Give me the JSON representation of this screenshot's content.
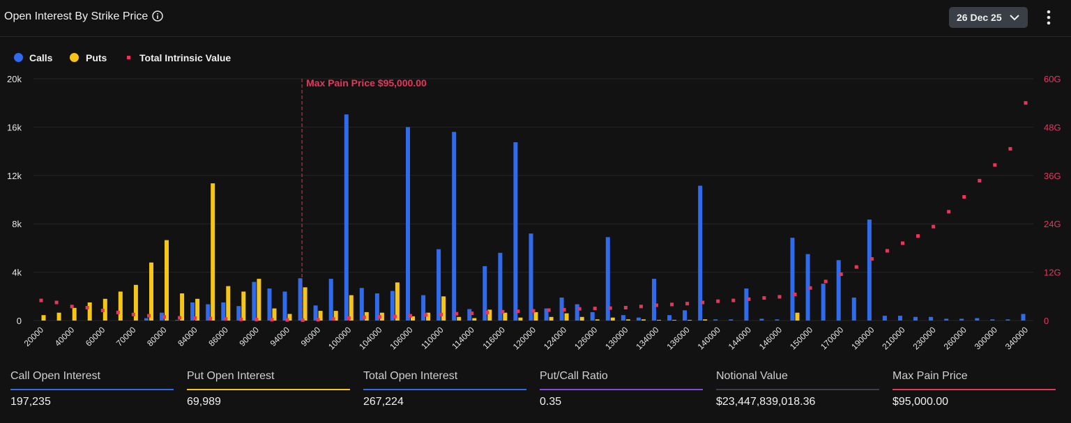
{
  "header": {
    "title": "Open Interest By Strike Price",
    "date_label": "26 Dec 25"
  },
  "legend": {
    "calls": "Calls",
    "puts": "Puts",
    "tiv": "Total Intrinsic Value"
  },
  "colors": {
    "calls": "#2f6bea",
    "puts": "#f5c518",
    "tiv": "#e8365a",
    "stat_line_4": "#7e4ae0",
    "stat_line_5": "#3c3f47"
  },
  "chart_data": {
    "type": "bar",
    "max_pain_label": "Max Pain Price $95,000.00",
    "max_pain_index": 17,
    "left_axis": {
      "ticks": [
        "0",
        "4k",
        "8k",
        "12k",
        "16k",
        "20k"
      ],
      "ylim": [
        0,
        20000
      ]
    },
    "right_axis": {
      "ticks": [
        "0",
        "12G",
        "24G",
        "36G",
        "48G",
        "60G"
      ],
      "ylim": [
        0,
        60000000000
      ]
    },
    "x_tick_labels": [
      {
        "index": 0,
        "label": "20000"
      },
      {
        "index": 2,
        "label": "40000"
      },
      {
        "index": 4,
        "label": "60000"
      },
      {
        "index": 6,
        "label": "70000"
      },
      {
        "index": 8,
        "label": "80000"
      },
      {
        "index": 10,
        "label": "84000"
      },
      {
        "index": 12,
        "label": "86000"
      },
      {
        "index": 14,
        "label": "90000"
      },
      {
        "index": 16,
        "label": "94000"
      },
      {
        "index": 18,
        "label": "96000"
      },
      {
        "index": 20,
        "label": "100000"
      },
      {
        "index": 22,
        "label": "104000"
      },
      {
        "index": 24,
        "label": "106000"
      },
      {
        "index": 26,
        "label": "110000"
      },
      {
        "index": 28,
        "label": "114000"
      },
      {
        "index": 30,
        "label": "116000"
      },
      {
        "index": 32,
        "label": "120000"
      },
      {
        "index": 34,
        "label": "124000"
      },
      {
        "index": 36,
        "label": "126000"
      },
      {
        "index": 38,
        "label": "130000"
      },
      {
        "index": 40,
        "label": "134000"
      },
      {
        "index": 42,
        "label": "136000"
      },
      {
        "index": 44,
        "label": "140000"
      },
      {
        "index": 46,
        "label": "144000"
      },
      {
        "index": 48,
        "label": "146000"
      },
      {
        "index": 50,
        "label": "150000"
      },
      {
        "index": 52,
        "label": "170000"
      },
      {
        "index": 54,
        "label": "190000"
      },
      {
        "index": 56,
        "label": "210000"
      },
      {
        "index": 58,
        "label": "230000"
      },
      {
        "index": 60,
        "label": "260000"
      },
      {
        "index": 62,
        "label": "300000"
      },
      {
        "index": 64,
        "label": "340000"
      }
    ],
    "calls": [
      0,
      0,
      0,
      0,
      0,
      0,
      0,
      200,
      650,
      50,
      1500,
      1350,
      1500,
      1200,
      3200,
      2650,
      2400,
      3500,
      1250,
      3450,
      17050,
      2700,
      2250,
      2450,
      16000,
      2100,
      5900,
      15600,
      950,
      4500,
      5600,
      14750,
      7200,
      1000,
      1900,
      1350,
      700,
      6900,
      450,
      250,
      3450,
      450,
      850,
      11150,
      100,
      100,
      2650,
      150,
      100,
      6850,
      5500,
      3050,
      5000,
      1900,
      8350,
      400,
      400,
      300,
      300,
      150,
      150,
      200,
      100,
      100,
      550
    ],
    "puts": [
      450,
      650,
      1050,
      1500,
      1800,
      2400,
      2950,
      4800,
      6650,
      2250,
      1800,
      11350,
      2850,
      2400,
      3450,
      1000,
      550,
      2750,
      800,
      800,
      2100,
      700,
      650,
      3150,
      350,
      650,
      2000,
      300,
      200,
      900,
      650,
      250,
      700,
      300,
      600,
      300,
      100,
      250,
      100,
      100,
      50,
      50,
      50,
      100,
      0,
      0,
      0,
      0,
      0,
      650,
      0,
      0,
      0,
      0,
      0,
      0,
      0,
      0,
      0,
      0,
      0,
      0,
      0,
      0,
      0
    ],
    "tiv": [
      5000000000,
      4500000000,
      3500000000,
      3200000000,
      2500000000,
      2000000000,
      1500000000,
      1200000000,
      900000000,
      700000000,
      600000000,
      500000000,
      400000000,
      300000000,
      250000000,
      200000000,
      150000000,
      100000000,
      200000000,
      400000000,
      600000000,
      800000000,
      900000000,
      1000000000,
      1200000000,
      1400000000,
      1500000000,
      1700000000,
      1800000000,
      2000000000,
      2200000000,
      2300000000,
      2400000000,
      2600000000,
      2700000000,
      2900000000,
      3000000000,
      3100000000,
      3200000000,
      3500000000,
      3800000000,
      4000000000,
      4200000000,
      4500000000,
      4800000000,
      5000000000,
      5300000000,
      5600000000,
      5900000000,
      6500000000,
      8100000000,
      9700000000,
      11500000000,
      13300000000,
      15300000000,
      17300000000,
      19200000000,
      21000000000,
      23300000000,
      27000000000,
      30700000000,
      34700000000,
      38600000000,
      42600000000,
      54000000000
    ]
  },
  "stats": [
    {
      "label": "Call Open Interest",
      "value": "197,235"
    },
    {
      "label": "Put Open Interest",
      "value": "69,989"
    },
    {
      "label": "Total Open Interest",
      "value": "267,224"
    },
    {
      "label": "Put/Call Ratio",
      "value": "0.35"
    },
    {
      "label": "Notional Value",
      "value": "$23,447,839,018.36"
    },
    {
      "label": "Max Pain Price",
      "value": "$95,000.00"
    }
  ]
}
